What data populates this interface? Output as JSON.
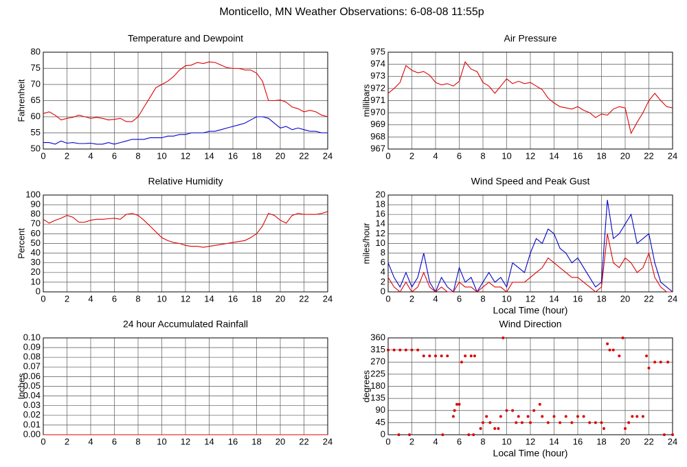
{
  "title": "Monticello, MN Weather Observations: 6-08-08 11:55p",
  "chart_data": [
    {
      "type": "line",
      "title": "Temperature and Dewpoint",
      "y_label": "Fahrenheit",
      "grid": true,
      "x": [
        0,
        0.5,
        1,
        1.5,
        2,
        2.5,
        3,
        3.5,
        4,
        4.5,
        5,
        5.5,
        6,
        6.5,
        7,
        7.5,
        8,
        8.5,
        9,
        9.5,
        10,
        10.5,
        11,
        11.5,
        12,
        12.5,
        13,
        13.5,
        14,
        14.5,
        15,
        15.5,
        16,
        16.5,
        17,
        17.5,
        18,
        18.5,
        19,
        19.5,
        20,
        20.5,
        21,
        21.5,
        22,
        22.5,
        23,
        23.5,
        24
      ],
      "series": [
        {
          "color": "#dd0000",
          "values": [
            61,
            61.5,
            60.5,
            59,
            59.5,
            59.8,
            60.5,
            60,
            59.5,
            59.8,
            59.5,
            59,
            59.2,
            59.5,
            58.5,
            58.5,
            60,
            63,
            66,
            69,
            70,
            71,
            72.5,
            74.5,
            75.8,
            76,
            76.8,
            76.5,
            77,
            76.8,
            76,
            75.2,
            75,
            75,
            74.5,
            74.5,
            73.5,
            71,
            65,
            65,
            65.2,
            64.5,
            63,
            62.5,
            61.5,
            62,
            61.5,
            60.5,
            60
          ]
        },
        {
          "color": "#0000cc",
          "values": [
            52,
            52,
            51.5,
            52.5,
            51.8,
            52,
            51.7,
            51.7,
            51.8,
            51.5,
            51.5,
            52,
            51.5,
            52,
            52.5,
            53,
            53,
            53,
            53.5,
            53.5,
            53.5,
            54,
            54,
            54.5,
            54.5,
            55,
            55,
            55,
            55.5,
            55.5,
            56,
            56.5,
            57,
            57.5,
            58,
            59,
            60,
            60,
            59.5,
            58,
            56.5,
            57,
            56,
            56.5,
            56,
            55.5,
            55.5,
            55,
            55
          ]
        }
      ],
      "xlim": [
        0,
        24
      ],
      "xticks": [
        0,
        2,
        4,
        6,
        8,
        10,
        12,
        14,
        16,
        18,
        20,
        22,
        24
      ],
      "ylim": [
        50,
        80
      ],
      "yticks": [
        50,
        55,
        60,
        65,
        70,
        75,
        80
      ]
    },
    {
      "type": "line",
      "title": "Air Pressure",
      "y_label": "millibars",
      "grid": true,
      "x": [
        0,
        0.5,
        1,
        1.5,
        2,
        2.5,
        3,
        3.5,
        4,
        4.5,
        5,
        5.5,
        6,
        6.5,
        7,
        7.5,
        8,
        8.5,
        9,
        9.5,
        10,
        10.5,
        11,
        11.5,
        12,
        12.5,
        13,
        13.5,
        14,
        14.5,
        15,
        15.5,
        16,
        16.5,
        17,
        17.5,
        18,
        18.5,
        19,
        19.5,
        20,
        20.5,
        21,
        21.5,
        22,
        22.5,
        23,
        23.5,
        24
      ],
      "series": [
        {
          "color": "#dd0000",
          "values": [
            971.6,
            972,
            972.5,
            973.9,
            973.5,
            973.3,
            973.4,
            973.1,
            972.5,
            972.3,
            972.4,
            972.2,
            972.6,
            974.2,
            973.6,
            973.4,
            972.5,
            972.2,
            971.6,
            972.2,
            972.8,
            972.4,
            972.6,
            972.4,
            972.5,
            972.2,
            971.9,
            971.2,
            970.8,
            970.5,
            970.4,
            970.3,
            970.5,
            970.2,
            970,
            969.6,
            969.9,
            969.8,
            970.3,
            970.5,
            970.4,
            968.3,
            969.2,
            970,
            971,
            971.6,
            971,
            970.5,
            970.4
          ]
        }
      ],
      "xlim": [
        0,
        24
      ],
      "xticks": [
        0,
        2,
        4,
        6,
        8,
        10,
        12,
        14,
        16,
        18,
        20,
        22,
        24
      ],
      "ylim": [
        967,
        975
      ],
      "yticks": [
        967,
        968,
        969,
        970,
        971,
        972,
        973,
        974,
        975
      ]
    },
    {
      "type": "line",
      "title": "Relative Humidity",
      "y_label": "Percent",
      "grid": true,
      "x": [
        0,
        0.5,
        1,
        1.5,
        2,
        2.5,
        3,
        3.5,
        4,
        4.5,
        5,
        5.5,
        6,
        6.5,
        7,
        7.5,
        8,
        8.5,
        9,
        9.5,
        10,
        10.5,
        11,
        11.5,
        12,
        12.5,
        13,
        13.5,
        14,
        14.5,
        15,
        15.5,
        16,
        16.5,
        17,
        17.5,
        18,
        18.5,
        19,
        19.5,
        20,
        20.5,
        21,
        21.5,
        22,
        22.5,
        23,
        23.5,
        24
      ],
      "series": [
        {
          "color": "#dd0000",
          "values": [
            75,
            71,
            74,
            76,
            79,
            77,
            72,
            72,
            74,
            75,
            75,
            75.5,
            76,
            75,
            80,
            81,
            79,
            74,
            68,
            62,
            56,
            53,
            51,
            50,
            48,
            47,
            47,
            46,
            47,
            48,
            49,
            50,
            51,
            52,
            53,
            56,
            60,
            68,
            81,
            79,
            74,
            71,
            79,
            81,
            80,
            80,
            80,
            81,
            83
          ]
        }
      ],
      "xlim": [
        0,
        24
      ],
      "xticks": [
        0,
        2,
        4,
        6,
        8,
        10,
        12,
        14,
        16,
        18,
        20,
        22,
        24
      ],
      "ylim": [
        0,
        100
      ],
      "yticks": [
        0,
        10,
        20,
        30,
        40,
        50,
        60,
        70,
        80,
        90,
        100
      ]
    },
    {
      "type": "line",
      "title": "Wind Speed and Peak Gust",
      "y_label": "miles/hour",
      "x_label": "Local Time (hour)",
      "grid": true,
      "x": [
        0,
        0.5,
        1,
        1.5,
        2,
        2.5,
        3,
        3.5,
        4,
        4.5,
        5,
        5.5,
        6,
        6.5,
        7,
        7.5,
        8,
        8.5,
        9,
        9.5,
        10,
        10.5,
        11,
        11.5,
        12,
        12.5,
        13,
        13.5,
        14,
        14.5,
        15,
        15.5,
        16,
        16.5,
        17,
        17.5,
        18,
        18.5,
        19,
        19.5,
        20,
        20.5,
        21,
        21.5,
        22,
        22.5,
        23,
        23.5,
        24
      ],
      "series": [
        {
          "color": "#0000cc",
          "values": [
            6,
            3,
            1,
            4,
            1,
            3,
            8,
            2,
            0,
            3,
            1,
            0,
            5,
            2,
            3,
            0,
            2,
            4,
            2,
            3,
            1,
            6,
            5,
            4,
            8,
            11,
            10,
            13,
            12,
            9,
            8,
            6,
            7,
            5,
            3,
            1,
            2,
            19,
            11,
            12,
            14,
            16,
            10,
            11,
            12,
            6,
            2,
            1,
            0
          ]
        },
        {
          "color": "#dd0000",
          "values": [
            3,
            1,
            0,
            2,
            0,
            1,
            4,
            1,
            0,
            1,
            0,
            0,
            2,
            1,
            1,
            0,
            1,
            2,
            1,
            1,
            0,
            2,
            2,
            2,
            3,
            4,
            5,
            7,
            6,
            5,
            4,
            3,
            3,
            2,
            1,
            0,
            1,
            12,
            6,
            5,
            7,
            6,
            4,
            5,
            8,
            3,
            1,
            0,
            0
          ]
        }
      ],
      "xlim": [
        0,
        24
      ],
      "xticks": [
        0,
        2,
        4,
        6,
        8,
        10,
        12,
        14,
        16,
        18,
        20,
        22,
        24
      ],
      "ylim": [
        0,
        20
      ],
      "yticks": [
        0,
        2,
        4,
        6,
        8,
        10,
        12,
        14,
        16,
        18,
        20
      ]
    },
    {
      "type": "line",
      "title": "24 hour Accumulated Rainfall",
      "y_label": "Inches",
      "grid": true,
      "x": [
        0,
        24
      ],
      "series": [
        {
          "color": "#dd0000",
          "values": [
            0,
            0
          ]
        }
      ],
      "xlim": [
        0,
        24
      ],
      "xticks": [
        0,
        2,
        4,
        6,
        8,
        10,
        12,
        14,
        16,
        18,
        20,
        22,
        24
      ],
      "ylim": [
        0,
        0.1
      ],
      "yticks": [
        {
          "value": 0,
          "label": "0.00"
        },
        0.01,
        0.02,
        0.03,
        0.04,
        0.05,
        0.06,
        0.07,
        0.08,
        0.09,
        {
          "value": 0.1,
          "label": "0.10"
        }
      ]
    },
    {
      "type": "scatter",
      "title": "Wind Direction",
      "y_label": "degrees",
      "x_label": "Local Time (hour)",
      "grid": true,
      "x": [
        0,
        0.5,
        1,
        1.5,
        0.9,
        1.8,
        2,
        2.5,
        3,
        3.5,
        4,
        4.5,
        5,
        4.6,
        5.5,
        5.6,
        5.8,
        6,
        6.2,
        6.5,
        7,
        7.3,
        6.8,
        7.2,
        7.8,
        8,
        8.3,
        8.6,
        9,
        9.3,
        9.5,
        9.7,
        10,
        10.5,
        10.8,
        11,
        11.3,
        11.8,
        12,
        12.3,
        12.8,
        13,
        13.5,
        14,
        14.5,
        15,
        15.5,
        16,
        16.5,
        17,
        17.5,
        18,
        18.2,
        18.5,
        18.7,
        19,
        19.5,
        19.8,
        20,
        20.3,
        20.6,
        21,
        21.5,
        21.8,
        22,
        22.5,
        23,
        23.3,
        23.6,
        24
      ],
      "series": [
        {
          "color": "#dd0000",
          "values": [
            315,
            315,
            315,
            315,
            0,
            0,
            315,
            315,
            293,
            293,
            293,
            293,
            293,
            0,
            68,
            90,
            113,
            113,
            270,
            293,
            293,
            293,
            0,
            0,
            23,
            45,
            68,
            45,
            23,
            23,
            68,
            360,
            90,
            90,
            45,
            68,
            45,
            68,
            45,
            90,
            113,
            68,
            45,
            68,
            45,
            68,
            45,
            68,
            68,
            45,
            45,
            45,
            23,
            338,
            315,
            315,
            293,
            360,
            23,
            45,
            68,
            68,
            68,
            293,
            248,
            270,
            270,
            0,
            270,
            0
          ]
        }
      ],
      "xlim": [
        0,
        24
      ],
      "xticks": [
        0,
        2,
        4,
        6,
        8,
        10,
        12,
        14,
        16,
        18,
        20,
        22,
        24
      ],
      "ylim": [
        0,
        360
      ],
      "yticks": [
        0,
        45,
        90,
        135,
        180,
        225,
        270,
        315,
        360
      ]
    }
  ]
}
